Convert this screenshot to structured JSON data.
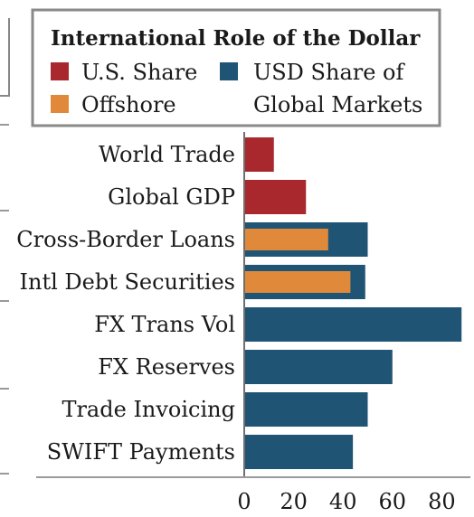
{
  "chart_data": {
    "type": "bar",
    "orientation": "horizontal",
    "title": "",
    "xlabel": "",
    "ylabel": "",
    "xlim": [
      0,
      90
    ],
    "xticks": [
      0,
      20,
      40,
      60,
      80
    ],
    "grid": false,
    "legend": {
      "title": "International Role of the Dollar",
      "placement": "top",
      "entries": [
        {
          "key": "us",
          "label": "U.S. Share",
          "color": "#a8282e"
        },
        {
          "key": "usd",
          "label_lines": [
            "USD Share of",
            "Global Markets"
          ],
          "color": "#1f5475"
        },
        {
          "key": "offshore",
          "label": "Offshore",
          "color": "#e0893b"
        }
      ]
    },
    "categories": [
      "World Trade",
      "Global GDP",
      "Cross-Border Loans",
      "Intl Debt Securities",
      "FX Trans Vol",
      "FX Reserves",
      "Trade Invoicing",
      "SWIFT Payments"
    ],
    "series": [
      {
        "name": "U.S. Share",
        "color": "#a8282e",
        "values": [
          12,
          25,
          null,
          null,
          null,
          null,
          null,
          null
        ]
      },
      {
        "name": "USD Share of Global Markets",
        "color": "#1f5475",
        "values": [
          null,
          null,
          50,
          49,
          88,
          60,
          50,
          44
        ]
      },
      {
        "name": "Offshore",
        "color": "#e0893b",
        "values": [
          null,
          null,
          34,
          43,
          null,
          null,
          null,
          null
        ]
      }
    ]
  }
}
